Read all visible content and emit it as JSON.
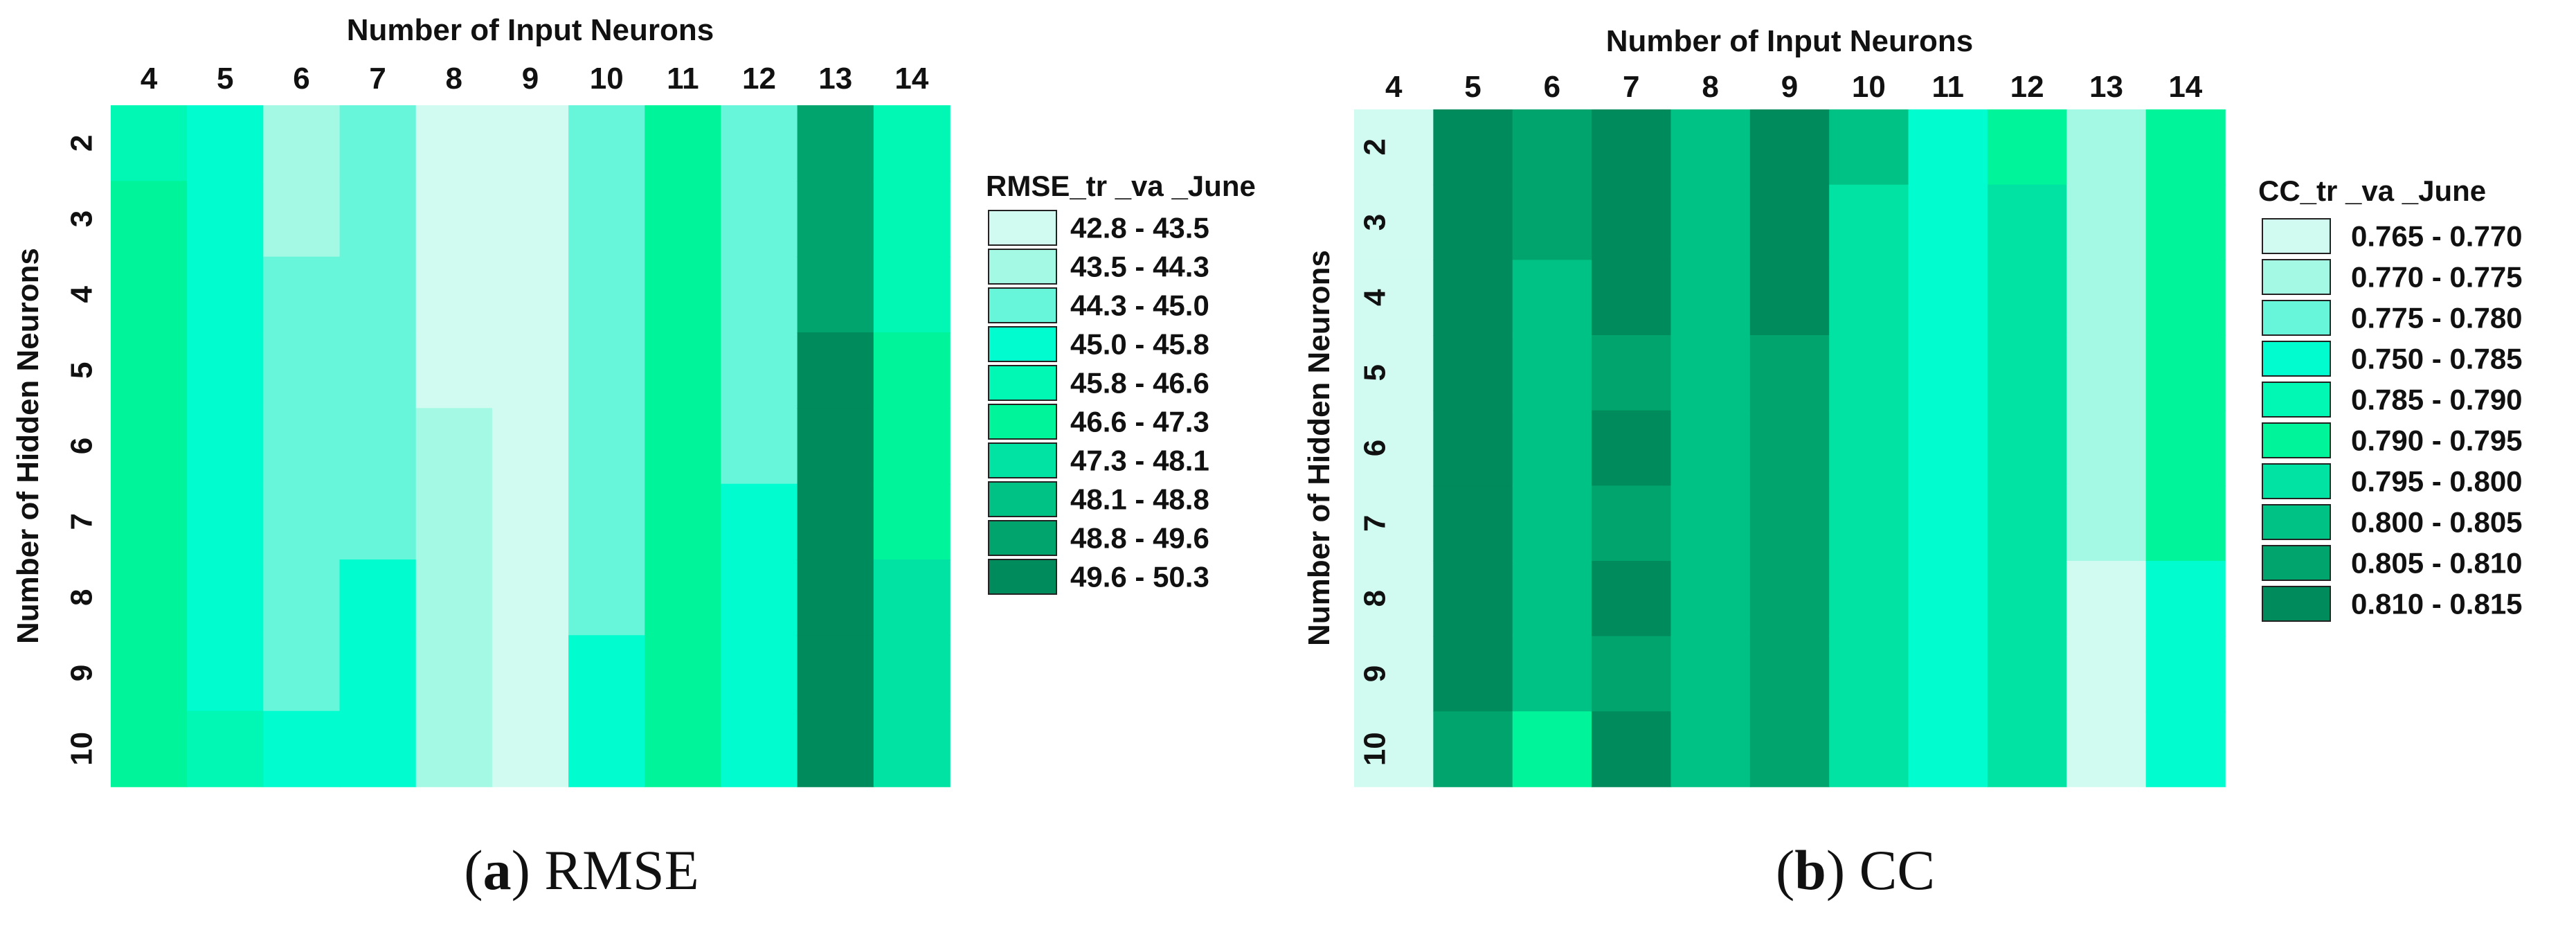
{
  "colors": {
    "palette": [
      "#d1fbf1",
      "#a4f9e4",
      "#67f6d9",
      "#00fccf",
      "#00f8b4",
      "#00f59a",
      "#00e3a2",
      "#00c285",
      "#00a46c",
      "#008b5d"
    ],
    "background": "#ffffff",
    "text": "#111111"
  },
  "chart_data": [
    {
      "type": "heatmap",
      "panel": "a",
      "caption_letter": "a",
      "caption_text": "RMSE",
      "xlabel": "Number of Input Neurons",
      "ylabel": "Number of Hidden Neurons",
      "x": [
        "4",
        "5",
        "6",
        "7",
        "8",
        "9",
        "10",
        "11",
        "12",
        "13",
        "14"
      ],
      "y": [
        "2",
        "3",
        "4",
        "5",
        "6",
        "7",
        "8",
        "9",
        "10"
      ],
      "legend_title": "RMSE_tr _va _June",
      "legend_position": "right",
      "legend_bins": [
        "42.8 - 43.5",
        "43.5 - 44.3",
        "44.3 - 45.0",
        "45.0 - 45.8",
        "45.8 - 46.6",
        "46.6 - 47.3",
        "47.3 - 48.1",
        "48.1 - 48.8",
        "48.8 - 49.6",
        "49.6 - 50.3"
      ],
      "bin_index_by_column": [
        [
          4,
          5,
          5,
          5,
          5,
          5,
          5,
          5,
          5
        ],
        [
          3,
          3,
          3,
          3,
          3,
          3,
          3,
          3,
          4
        ],
        [
          1,
          1,
          2,
          2,
          2,
          2,
          2,
          2,
          3
        ],
        [
          2,
          2,
          2,
          2,
          2,
          2,
          3,
          3,
          3
        ],
        [
          0,
          0,
          0,
          0,
          1,
          1,
          1,
          1,
          1
        ],
        [
          0,
          0,
          0,
          0,
          0,
          0,
          0,
          0,
          0
        ],
        [
          2,
          2,
          2,
          2,
          2,
          2,
          2,
          3,
          3
        ],
        [
          5,
          5,
          5,
          5,
          5,
          5,
          5,
          5,
          5
        ],
        [
          2,
          2,
          2,
          2,
          2,
          3,
          3,
          3,
          3
        ],
        [
          8,
          8,
          8,
          9,
          9,
          9,
          9,
          9,
          9
        ],
        [
          4,
          4,
          4,
          5,
          5,
          5,
          6,
          6,
          6
        ]
      ]
    },
    {
      "type": "heatmap",
      "panel": "b",
      "caption_letter": "b",
      "caption_text": "CC",
      "xlabel": "Number of Input Neurons",
      "ylabel": "Number of Hidden Neurons",
      "x": [
        "4",
        "5",
        "6",
        "7",
        "8",
        "9",
        "10",
        "11",
        "12",
        "13",
        "14"
      ],
      "y": [
        "2",
        "3",
        "4",
        "5",
        "6",
        "7",
        "8",
        "9",
        "10"
      ],
      "legend_title": "CC_tr _va _June",
      "legend_position": "right",
      "legend_bins": [
        "0.765 - 0.770",
        "0.770 - 0.775",
        "0.775 - 0.780",
        "0.750 - 0.785",
        "0.785 - 0.790",
        "0.790 - 0.795",
        "0.795 - 0.800",
        "0.800 - 0.805",
        "0.805 - 0.810",
        "0.810 - 0.815"
      ],
      "bin_index_by_column": [
        [
          0,
          0,
          0,
          0,
          0,
          0,
          0,
          0,
          0
        ],
        [
          9,
          9,
          9,
          9,
          9,
          9,
          9,
          9,
          8
        ],
        [
          8,
          8,
          7,
          7,
          7,
          7,
          7,
          7,
          5
        ],
        [
          9,
          9,
          9,
          8,
          9,
          8,
          9,
          8,
          9
        ],
        [
          7,
          7,
          7,
          7,
          7,
          7,
          7,
          7,
          7
        ],
        [
          9,
          9,
          9,
          8,
          8,
          8,
          8,
          8,
          8
        ],
        [
          7,
          6,
          6,
          6,
          6,
          6,
          6,
          6,
          6
        ],
        [
          3,
          3,
          3,
          3,
          3,
          3,
          3,
          3,
          3
        ],
        [
          5,
          6,
          6,
          6,
          6,
          6,
          6,
          6,
          6
        ],
        [
          1,
          1,
          1,
          1,
          1,
          1,
          0,
          0,
          0
        ],
        [
          5,
          5,
          5,
          5,
          5,
          5,
          3,
          3,
          3
        ]
      ]
    }
  ]
}
